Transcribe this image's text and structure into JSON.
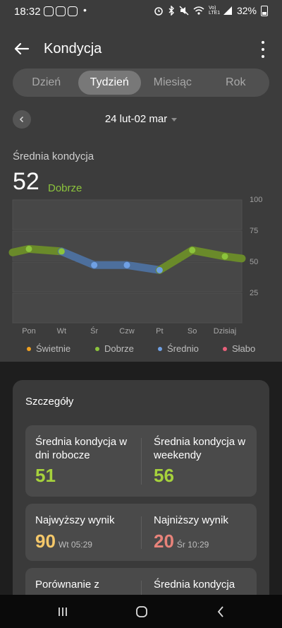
{
  "status_bar": {
    "time": "18:32",
    "dot": "•",
    "net": "Vo) LTE1",
    "battery": "32%"
  },
  "header": {
    "title": "Kondycja"
  },
  "tabs": [
    {
      "label": "Dzień",
      "active": false
    },
    {
      "label": "Tydzień",
      "active": true
    },
    {
      "label": "Miesiąc",
      "active": false
    },
    {
      "label": "Rok",
      "active": false
    }
  ],
  "date_range": "24 lut-02 mar",
  "summary": {
    "label": "Średnia kondycja",
    "value": "52",
    "status": "Dobrze"
  },
  "chart_data": {
    "type": "line",
    "categories": [
      "Pon",
      "Wt",
      "Śr",
      "Czw",
      "Pt",
      "So",
      "Dzisiaj"
    ],
    "series": [
      {
        "values": [
          60,
          58,
          47,
          47,
          43,
          59,
          54
        ]
      }
    ],
    "ylim": [
      0,
      100
    ],
    "yticks": [
      "100",
      "75",
      "50",
      "25"
    ],
    "point_colors": [
      "#8cc43c",
      "#8cc43c",
      "#6fa0e4",
      "#6fa0e4",
      "#6fa0e4",
      "#8cc43c",
      "#8cc43c"
    ],
    "grid": true
  },
  "legend": [
    {
      "label": "Świetnie",
      "color": "#f0a020"
    },
    {
      "label": "Dobrze",
      "color": "#8cc43c"
    },
    {
      "label": "Średnio",
      "color": "#6fa0e4"
    },
    {
      "label": "Słabo",
      "color": "#e8607a"
    }
  ],
  "details": {
    "title": "Szczegóły",
    "weekday_avg": {
      "label": "Średnia kondycja w dni robocze",
      "value": "51",
      "color": "#a6d23c"
    },
    "weekend_avg": {
      "label": "Średnia kondycja w weekendy",
      "value": "56",
      "color": "#a6d23c"
    },
    "highest": {
      "label": "Najwyższy wynik",
      "value": "90",
      "when": "Wt 05:29",
      "color": "#f5c86a"
    },
    "lowest": {
      "label": "Najniższy wynik",
      "value": "20",
      "when": "Śr 10:29",
      "color": "#e8837a"
    },
    "compare": {
      "label": "Porównanie z"
    },
    "avg_cut": {
      "label": "Średnia kondycja"
    }
  }
}
